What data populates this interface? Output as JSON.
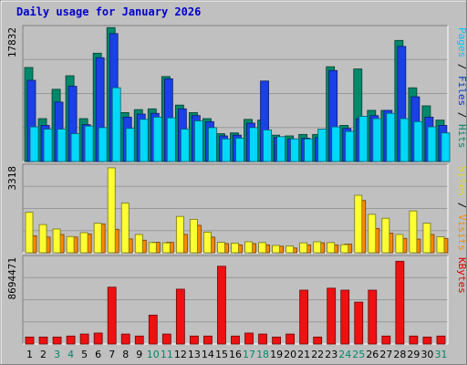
{
  "chart_data": [
    {
      "type": "bar",
      "title": "Daily usage for January 2026",
      "ylabel_parts": [
        {
          "text": "Pages",
          "color": "#00c8f0"
        },
        {
          "text": " / ",
          "color": "#000000"
        },
        {
          "text": "Files",
          "color": "#0033cc"
        },
        {
          "text": " / ",
          "color": "#000000"
        },
        {
          "text": "Hits",
          "color": "#00886a"
        }
      ],
      "ymax_label": "17832",
      "ylim": [
        0,
        17832
      ],
      "grid": true,
      "categories": [
        "1",
        "2",
        "3",
        "4",
        "5",
        "6",
        "7",
        "8",
        "9",
        "10",
        "11",
        "12",
        "13",
        "14",
        "15",
        "16",
        "17",
        "18",
        "19",
        "20",
        "21",
        "22",
        "23",
        "24",
        "25",
        "26",
        "27",
        "28",
        "29",
        "30",
        "31"
      ],
      "weekend_categories": [
        "3",
        "4",
        "10",
        "11",
        "17",
        "18",
        "24",
        "25",
        "31"
      ],
      "series": [
        {
          "name": "Hits",
          "color": "#00886a",
          "values": [
            12500,
            5700,
            9600,
            11400,
            5700,
            14400,
            17800,
            6500,
            6900,
            7000,
            11300,
            7500,
            6500,
            5700,
            3700,
            3800,
            5600,
            5500,
            3500,
            3400,
            3600,
            3600,
            12600,
            4800,
            12300,
            6800,
            6800,
            16100,
            9800,
            7400,
            5500
          ]
        },
        {
          "name": "Files",
          "color": "#1a40e8",
          "values": [
            10800,
            4800,
            7900,
            10000,
            4900,
            13800,
            17000,
            5900,
            6300,
            6400,
            11000,
            7000,
            6100,
            5300,
            3400,
            3500,
            5100,
            10700,
            3200,
            3000,
            3100,
            3200,
            12100,
            4400,
            5700,
            6100,
            6800,
            15300,
            8600,
            5900,
            4800
          ]
        },
        {
          "name": "Pages",
          "color": "#00d8f8",
          "values": [
            4600,
            4300,
            4300,
            3700,
            4700,
            4500,
            9800,
            4400,
            5600,
            5900,
            5800,
            4300,
            5400,
            4500,
            3000,
            3100,
            4500,
            4200,
            3300,
            3000,
            3000,
            4300,
            4600,
            4000,
            6000,
            5700,
            6400,
            5700,
            5300,
            4600,
            3800
          ]
        }
      ]
    },
    {
      "type": "bar",
      "ylabel_parts": [
        {
          "text": "Sites",
          "color": "#e0e000"
        },
        {
          "text": " / ",
          "color": "#000000"
        },
        {
          "text": "Visits",
          "color": "#ff8800"
        }
      ],
      "ymax_label": "3318",
      "ylim": [
        0,
        3318
      ],
      "grid": true,
      "categories": [
        "1",
        "2",
        "3",
        "4",
        "5",
        "6",
        "7",
        "8",
        "9",
        "10",
        "11",
        "12",
        "13",
        "14",
        "15",
        "16",
        "17",
        "18",
        "19",
        "20",
        "21",
        "22",
        "23",
        "24",
        "25",
        "26",
        "27",
        "28",
        "29",
        "30",
        "31"
      ],
      "series": [
        {
          "name": "Visits",
          "color": "#ff8800",
          "values": [
            650,
            600,
            700,
            600,
            720,
            1100,
            900,
            530,
            480,
            400,
            400,
            700,
            1050,
            600,
            350,
            300,
            350,
            300,
            250,
            180,
            300,
            380,
            300,
            330,
            2000,
            930,
            750,
            550,
            520,
            700,
            550
          ]
        },
        {
          "name": "Sites",
          "color": "#ffff33",
          "values": [
            1550,
            1080,
            910,
            620,
            770,
            1130,
            3250,
            1900,
            700,
            390,
            380,
            1390,
            1280,
            790,
            400,
            370,
            420,
            390,
            280,
            260,
            380,
            420,
            390,
            310,
            2200,
            1470,
            1320,
            700,
            1600,
            1130,
            610
          ]
        }
      ]
    },
    {
      "type": "bar",
      "ylabel_parts": [
        {
          "text": "KBytes",
          "color": "#dd0000"
        }
      ],
      "ymax_label": "8694471",
      "ylim": [
        0,
        8694471
      ],
      "grid": true,
      "categories": [
        "1",
        "2",
        "3",
        "4",
        "5",
        "6",
        "7",
        "8",
        "9",
        "10",
        "11",
        "12",
        "13",
        "14",
        "15",
        "16",
        "17",
        "18",
        "19",
        "20",
        "21",
        "22",
        "23",
        "24",
        "25",
        "26",
        "27",
        "28",
        "29",
        "30",
        "31"
      ],
      "series": [
        {
          "name": "KBytes",
          "color": "#ee1111",
          "values": [
            700000,
            700000,
            700000,
            800000,
            1000000,
            1100000,
            5700000,
            1000000,
            800000,
            2900000,
            1000000,
            5500000,
            800000,
            800000,
            7800000,
            800000,
            1100000,
            1000000,
            700000,
            1000000,
            5400000,
            700000,
            5600000,
            5400000,
            4200000,
            5400000,
            800000,
            8300000,
            800000,
            700000,
            800000
          ]
        }
      ]
    }
  ]
}
